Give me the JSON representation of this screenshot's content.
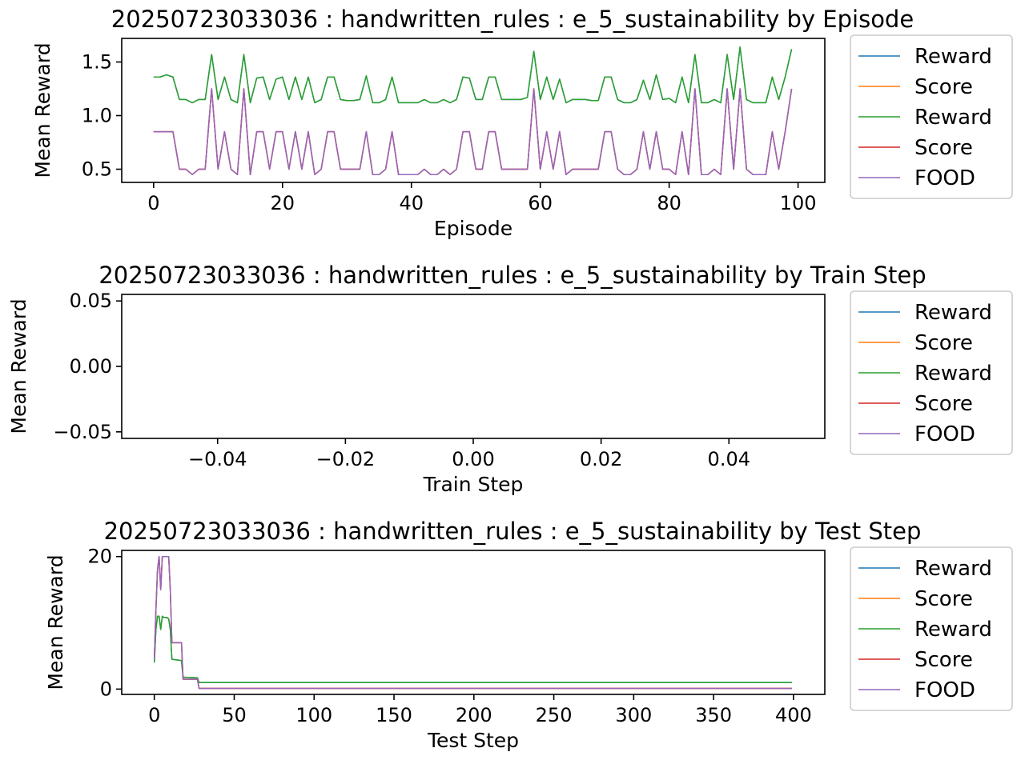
{
  "chart_data": [
    {
      "type": "line",
      "title": "20250723033036 : handwritten_rules : e_5_sustainability by Episode",
      "xlabel": "Episode",
      "ylabel": "Mean Reward",
      "xlim": [
        -4.95,
        104.15
      ],
      "ylim": [
        0.377,
        1.72
      ],
      "xticks": [
        0,
        20,
        40,
        60,
        80,
        100
      ],
      "xtick_labels": [
        "0",
        "20",
        "40",
        "60",
        "80",
        "100"
      ],
      "yticks": [
        0.5,
        1.0,
        1.5
      ],
      "ytick_labels": [
        "0.5",
        "1.0",
        "1.5"
      ],
      "grid": false,
      "legend": "upper right",
      "series": [
        {
          "name": "Reward",
          "color": "#1f77b4",
          "ref": "reward"
        },
        {
          "name": "Score",
          "color": "#ff7f0e",
          "ref": "score"
        },
        {
          "name": "Reward",
          "color": "#2ca02c",
          "ref": "reward"
        },
        {
          "name": "Score",
          "color": "#d62728",
          "ref": "score"
        },
        {
          "name": "FOOD",
          "color": "#9467bd",
          "ref": "score"
        }
      ],
      "reward": [
        1.36,
        1.36,
        1.38,
        1.36,
        1.15,
        1.15,
        1.12,
        1.15,
        1.15,
        1.57,
        1.15,
        1.36,
        1.15,
        1.12,
        1.57,
        1.12,
        1.35,
        1.36,
        1.15,
        1.34,
        1.36,
        1.15,
        1.36,
        1.15,
        1.36,
        1.12,
        1.15,
        1.36,
        1.36,
        1.15,
        1.14,
        1.14,
        1.15,
        1.37,
        1.12,
        1.12,
        1.15,
        1.36,
        1.12,
        1.12,
        1.12,
        1.12,
        1.15,
        1.12,
        1.12,
        1.15,
        1.12,
        1.15,
        1.36,
        1.35,
        1.15,
        1.15,
        1.36,
        1.36,
        1.15,
        1.15,
        1.15,
        1.15,
        1.17,
        1.6,
        1.15,
        1.36,
        1.15,
        1.34,
        1.12,
        1.15,
        1.15,
        1.15,
        1.14,
        1.14,
        1.36,
        1.36,
        1.15,
        1.12,
        1.12,
        1.15,
        1.33,
        1.15,
        1.38,
        1.15,
        1.16,
        1.12,
        1.36,
        1.12,
        1.57,
        1.12,
        1.12,
        1.15,
        1.12,
        1.57,
        1.15,
        1.64,
        1.15,
        1.12,
        1.12,
        1.12,
        1.36,
        1.15,
        1.36,
        1.62
      ],
      "score": [
        0.85,
        0.85,
        0.85,
        0.85,
        0.5,
        0.5,
        0.45,
        0.5,
        0.5,
        1.25,
        0.5,
        0.85,
        0.5,
        0.45,
        1.25,
        0.45,
        0.85,
        0.85,
        0.5,
        0.85,
        0.85,
        0.5,
        0.85,
        0.5,
        0.85,
        0.45,
        0.5,
        0.85,
        0.85,
        0.5,
        0.5,
        0.5,
        0.5,
        0.85,
        0.45,
        0.45,
        0.5,
        0.85,
        0.45,
        0.45,
        0.45,
        0.45,
        0.5,
        0.45,
        0.45,
        0.5,
        0.45,
        0.5,
        0.85,
        0.85,
        0.5,
        0.5,
        0.85,
        0.85,
        0.5,
        0.5,
        0.5,
        0.5,
        0.5,
        1.25,
        0.5,
        0.85,
        0.5,
        0.85,
        0.45,
        0.5,
        0.5,
        0.5,
        0.5,
        0.5,
        0.85,
        0.85,
        0.5,
        0.45,
        0.45,
        0.5,
        0.85,
        0.5,
        0.85,
        0.5,
        0.5,
        0.45,
        0.85,
        0.45,
        1.25,
        0.45,
        0.45,
        0.5,
        0.45,
        1.25,
        0.5,
        1.25,
        0.5,
        0.45,
        0.45,
        0.45,
        0.85,
        0.5,
        0.85,
        1.25
      ]
    },
    {
      "type": "line",
      "title": "20250723033036 : handwritten_rules : e_5_sustainability by Train Step",
      "xlabel": "Train Step",
      "ylabel": "Mean Reward",
      "xlim": [
        -0.055,
        0.055
      ],
      "ylim": [
        -0.055,
        0.055
      ],
      "xticks": [
        -0.04,
        -0.02,
        0.0,
        0.02,
        0.04
      ],
      "xtick_labels": [
        "−0.04",
        "−0.02",
        "0.00",
        "0.02",
        "0.04"
      ],
      "yticks": [
        -0.05,
        0.0,
        0.05
      ],
      "ytick_labels": [
        "−0.05",
        "0.00",
        "0.05"
      ],
      "grid": false,
      "legend": "lower right",
      "series": [
        {
          "name": "Reward",
          "color": "#1f77b4"
        },
        {
          "name": "Score",
          "color": "#ff7f0e"
        },
        {
          "name": "Reward",
          "color": "#2ca02c"
        },
        {
          "name": "Score",
          "color": "#d62728"
        },
        {
          "name": "FOOD",
          "color": "#9467bd"
        }
      ]
    },
    {
      "type": "line",
      "title": "20250723033036 : handwritten_rules : e_5_sustainability by Test Step",
      "xlabel": "Test Step",
      "ylabel": "Mean Reward",
      "xlim": [
        -20.4,
        419.6
      ],
      "ylim": [
        -0.8,
        20.93
      ],
      "xticks": [
        0,
        50,
        100,
        150,
        200,
        250,
        300,
        350,
        400
      ],
      "xtick_labels": [
        "0",
        "50",
        "100",
        "150",
        "200",
        "250",
        "300",
        "350",
        "400"
      ],
      "yticks": [
        0,
        20
      ],
      "ytick_labels": [
        "0",
        "20"
      ],
      "grid": false,
      "legend": "upper right",
      "series": [
        {
          "name": "Reward",
          "color": "#1f77b4",
          "ref": "reward"
        },
        {
          "name": "Score",
          "color": "#ff7f0e",
          "ref": "score"
        },
        {
          "name": "Reward",
          "color": "#2ca02c",
          "ref": "reward"
        },
        {
          "name": "Score",
          "color": "#d62728",
          "ref": "score"
        },
        {
          "name": "FOOD",
          "color": "#9467bd",
          "ref": "score"
        }
      ],
      "reward": [
        [
          0,
          4
        ],
        [
          1,
          9
        ],
        [
          2,
          11
        ],
        [
          3,
          11
        ],
        [
          4,
          9
        ],
        [
          5,
          11
        ],
        [
          6,
          10.8
        ],
        [
          7,
          10.8
        ],
        [
          8,
          10.8
        ],
        [
          9,
          10.6
        ],
        [
          10,
          9
        ],
        [
          11,
          4.5
        ],
        [
          14,
          4.4
        ],
        [
          17,
          4.3
        ],
        [
          18,
          1.8
        ],
        [
          27,
          1.7
        ],
        [
          28,
          1.0
        ],
        [
          399,
          1.0
        ]
      ],
      "score": [
        [
          0,
          4.5
        ],
        [
          1,
          12
        ],
        [
          2,
          18
        ],
        [
          3,
          20
        ],
        [
          4,
          15
        ],
        [
          5,
          20
        ],
        [
          9,
          20
        ],
        [
          10,
          15
        ],
        [
          11,
          7
        ],
        [
          17,
          7
        ],
        [
          18,
          1.5
        ],
        [
          27,
          1.5
        ],
        [
          28,
          0.1
        ],
        [
          399,
          0.1
        ]
      ]
    }
  ]
}
